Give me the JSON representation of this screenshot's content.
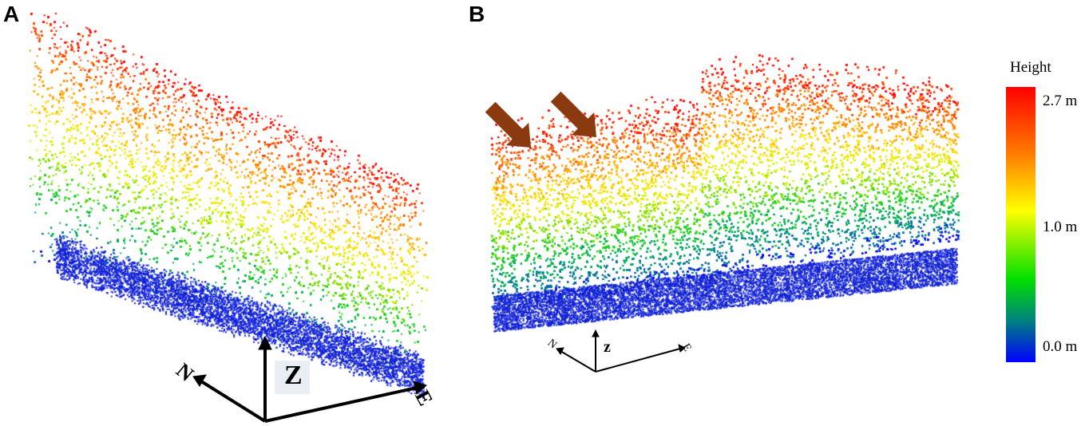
{
  "panels": {
    "a_label": "A",
    "b_label": "B"
  },
  "legend": {
    "title": "Height",
    "ticks": [
      "2.7 m",
      "1.0 m",
      "0.0 m"
    ],
    "colors": [
      "#ff0000",
      "#ff8000",
      "#ffff00",
      "#00e000",
      "#008080",
      "#0000ff"
    ]
  },
  "axes_a": {
    "z": "Z",
    "n": "N",
    "e": "E"
  },
  "axes_b": {
    "z": "z",
    "n": "N",
    "e": "E"
  },
  "arrows": {
    "color": "#8b3a0f",
    "count": 2
  }
}
